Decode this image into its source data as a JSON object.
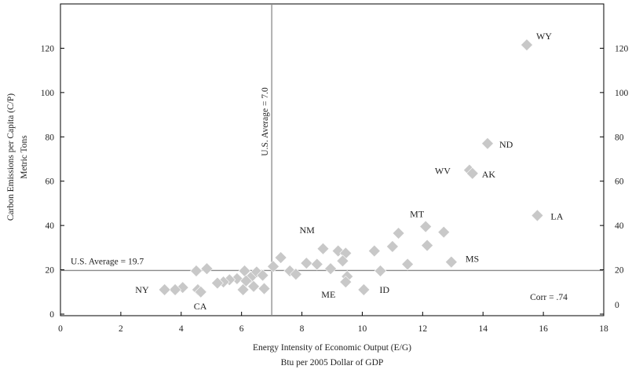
{
  "chart_data": {
    "type": "scatter",
    "xlabel": "Energy Intensity of Economic Output (E/G)",
    "xlabel_sub": "Btu per 2005 Dollar of GDP",
    "ylabel": "Carbon Emissions per Capita (C/P)",
    "ylabel_sub": "Metric Tons",
    "xlim": [
      0,
      18
    ],
    "ylim": [
      0,
      140
    ],
    "x_ticks": [
      0,
      2,
      4,
      6,
      8,
      10,
      12,
      14,
      16,
      18
    ],
    "y_ticks_left": [
      0,
      20,
      40,
      60,
      80,
      100,
      120
    ],
    "y_ticks_right": [
      0,
      20,
      40,
      60,
      80,
      100,
      120
    ],
    "grid": false,
    "marker": "diamond",
    "marker_color": "#c8c8c8",
    "reference_lines": {
      "vertical": {
        "x": 7.0,
        "label": "U.S. Average = 7.0",
        "color": "#8a8a8a"
      },
      "horizontal": {
        "y": 19.7,
        "label": "U.S. Average = 19.7",
        "color": "#8a8a8a"
      }
    },
    "annotation": "Corr = .74",
    "points": [
      {
        "x": 15.45,
        "y": 121.5,
        "label": "WY"
      },
      {
        "x": 14.15,
        "y": 77.0,
        "label": "ND"
      },
      {
        "x": 13.55,
        "y": 65.0,
        "label": "WV"
      },
      {
        "x": 13.65,
        "y": 63.5,
        "label": "AK"
      },
      {
        "x": 15.8,
        "y": 44.5,
        "label": "LA"
      },
      {
        "x": 12.1,
        "y": 39.5,
        "label": "MT"
      },
      {
        "x": 12.7,
        "y": 37.0
      },
      {
        "x": 11.2,
        "y": 36.5
      },
      {
        "x": 12.15,
        "y": 31.0
      },
      {
        "x": 11.0,
        "y": 30.5
      },
      {
        "x": 12.95,
        "y": 23.5,
        "label": "MS"
      },
      {
        "x": 8.7,
        "y": 29.5,
        "label": "NM"
      },
      {
        "x": 10.4,
        "y": 28.5
      },
      {
        "x": 9.2,
        "y": 28.5
      },
      {
        "x": 9.45,
        "y": 27.5
      },
      {
        "x": 7.3,
        "y": 25.5
      },
      {
        "x": 9.35,
        "y": 24.0
      },
      {
        "x": 11.5,
        "y": 22.5
      },
      {
        "x": 8.15,
        "y": 23.0
      },
      {
        "x": 8.5,
        "y": 22.5
      },
      {
        "x": 7.05,
        "y": 21.5
      },
      {
        "x": 8.95,
        "y": 20.5
      },
      {
        "x": 10.6,
        "y": 19.5
      },
      {
        "x": 7.6,
        "y": 19.5
      },
      {
        "x": 7.8,
        "y": 18.0
      },
      {
        "x": 6.5,
        "y": 19.0
      },
      {
        "x": 6.1,
        "y": 19.5
      },
      {
        "x": 4.85,
        "y": 20.5
      },
      {
        "x": 4.5,
        "y": 19.5
      },
      {
        "x": 6.7,
        "y": 17.5
      },
      {
        "x": 9.5,
        "y": 17.0
      },
      {
        "x": 6.3,
        "y": 16.5
      },
      {
        "x": 5.85,
        "y": 16.0
      },
      {
        "x": 5.6,
        "y": 15.5
      },
      {
        "x": 6.15,
        "y": 15.0
      },
      {
        "x": 5.4,
        "y": 14.5
      },
      {
        "x": 5.2,
        "y": 14.0
      },
      {
        "x": 9.45,
        "y": 14.5,
        "label": "ME"
      },
      {
        "x": 6.4,
        "y": 12.5
      },
      {
        "x": 6.05,
        "y": 11.0
      },
      {
        "x": 6.75,
        "y": 11.5
      },
      {
        "x": 4.05,
        "y": 12.0
      },
      {
        "x": 3.8,
        "y": 11.0
      },
      {
        "x": 3.45,
        "y": 11.0,
        "label": "NY"
      },
      {
        "x": 4.55,
        "y": 11.0
      },
      {
        "x": 4.65,
        "y": 10.0,
        "label": "CA"
      },
      {
        "x": 10.05,
        "y": 11.0,
        "label": "ID"
      }
    ]
  }
}
